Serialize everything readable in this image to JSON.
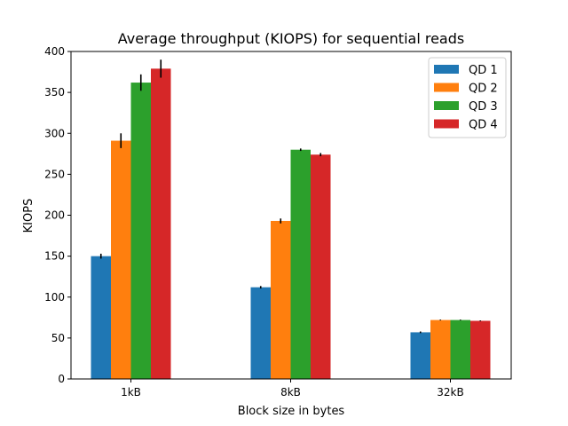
{
  "chart_data": {
    "type": "bar",
    "title": "Average throughput (KIOPS) for sequential reads",
    "xlabel": "Block size in bytes",
    "ylabel": "KIOPS",
    "categories": [
      "1kB",
      "8kB",
      "32kB"
    ],
    "ylim": [
      0,
      400
    ],
    "yticks": [
      0,
      50,
      100,
      150,
      200,
      250,
      300,
      350,
      400
    ],
    "grid": false,
    "legend_position": "top-right",
    "series": [
      {
        "name": "QD 1",
        "color": "#1f77b4",
        "values": [
          150,
          112,
          57
        ],
        "errors": [
          3,
          1.5,
          1
        ]
      },
      {
        "name": "QD 2",
        "color": "#ff7f0e",
        "values": [
          291,
          193,
          72
        ],
        "errors": [
          9,
          3,
          0.5
        ]
      },
      {
        "name": "QD 3",
        "color": "#2ca02c",
        "values": [
          362,
          280,
          72
        ],
        "errors": [
          10,
          1.5,
          0.5
        ]
      },
      {
        "name": "QD 4",
        "color": "#d62728",
        "values": [
          379,
          274,
          71
        ],
        "errors": [
          11,
          2,
          0.5
        ]
      }
    ]
  }
}
